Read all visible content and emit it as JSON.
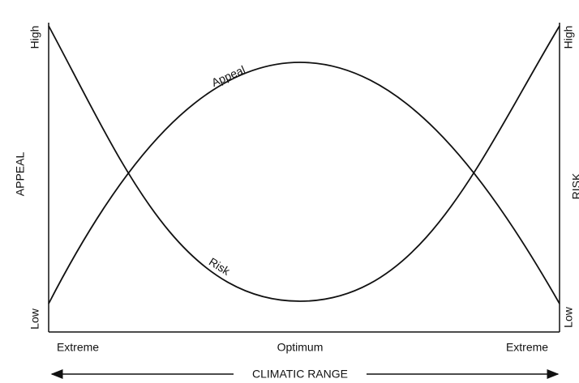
{
  "left_axis": {
    "title": "APPEAL",
    "high": "High",
    "low": "Low"
  },
  "right_axis": {
    "title": "RISK",
    "high": "High",
    "low": "Low"
  },
  "curves": {
    "appeal": "Appeal",
    "risk": "Risk"
  },
  "x_axis": {
    "title": "CLIMATIC RANGE",
    "labels": [
      "Extreme",
      "Optimum",
      "Extreme"
    ]
  }
}
